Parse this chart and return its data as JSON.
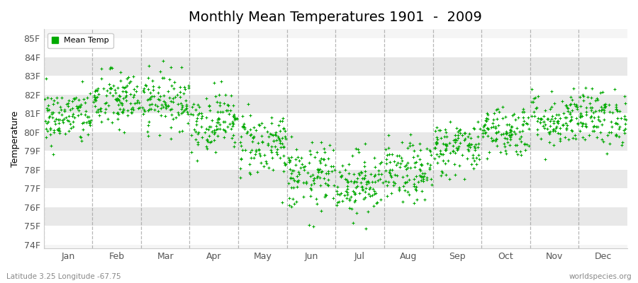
{
  "title": "Monthly Mean Temperatures 1901  -  2009",
  "ylabel": "Temperature",
  "xlabel_bottom_left": "Latitude 3.25 Longitude -67.75",
  "xlabel_bottom_right": "worldspecies.org",
  "legend_label": "Mean Temp",
  "marker_color": "#00aa00",
  "bg_color": "#ffffff",
  "plot_bg_color": "#f5f5f5",
  "white_band": "#ffffff",
  "gray_band": "#e8e8e8",
  "ylim": [
    73.8,
    85.5
  ],
  "yticks": [
    74,
    75,
    76,
    77,
    78,
    79,
    80,
    81,
    82,
    83,
    84,
    85
  ],
  "ytick_labels": [
    "74F",
    "75F",
    "76F",
    "77F",
    "78F",
    "79F",
    "80F",
    "81F",
    "82F",
    "83F",
    "84F",
    "85F"
  ],
  "months": [
    "Jan",
    "Feb",
    "Mar",
    "Apr",
    "May",
    "Jun",
    "Jul",
    "Aug",
    "Sep",
    "Oct",
    "Nov",
    "Dec"
  ],
  "num_years": 109,
  "seed": 42,
  "monthly_means": [
    80.8,
    81.7,
    81.7,
    80.6,
    79.4,
    77.6,
    77.3,
    77.8,
    79.2,
    80.1,
    80.7,
    80.8
  ],
  "monthly_stds": [
    0.75,
    0.8,
    0.75,
    0.8,
    0.9,
    0.9,
    0.85,
    0.8,
    0.75,
    0.7,
    0.75,
    0.75
  ],
  "dashed_line_color": "#999999",
  "dashed_linewidth": 0.9,
  "title_fontsize": 14,
  "axis_fontsize": 9,
  "legend_fontsize": 8
}
